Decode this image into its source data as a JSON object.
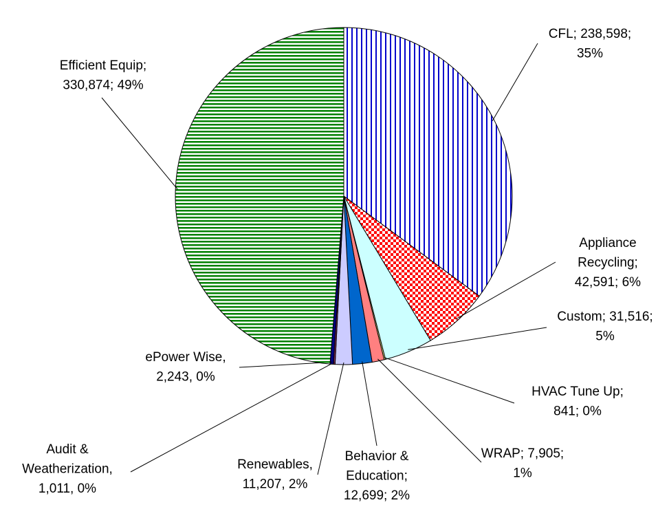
{
  "chart_data": {
    "type": "pie",
    "values": [
      238598,
      42591,
      31516,
      841,
      7905,
      12699,
      11207,
      1011,
      2243,
      330874
    ],
    "value_labels": [
      [
        "CFL; 238,598;",
        "35%"
      ],
      [
        "Appliance",
        "Recycling;",
        "42,591; 6%"
      ],
      [
        "Custom; 31,516;",
        "5%"
      ],
      [
        "HVAC Tune Up;",
        "841; 0%"
      ],
      [
        "WRAP; 7,905;",
        "1%"
      ],
      [
        "Behavior &",
        "Education;",
        "12,699; 2%"
      ],
      [
        "Renewables,",
        "11,207, 2%"
      ],
      [
        "Audit &",
        "Weatherization,",
        "1,011, 0%"
      ],
      [
        "ePower Wise,",
        "2,243, 0%"
      ],
      [
        "Efficient Equip;",
        "330,874; 49%"
      ]
    ],
    "colors": [
      "#0000cc",
      "#ff0000",
      "#ccffff",
      "#ffff99",
      "#ff8080",
      "#0066cc",
      "#ccccff",
      "#993366",
      "#000080",
      "#008000"
    ],
    "patterns": [
      "vertical-stripes",
      "checker",
      "solid",
      "solid",
      "solid",
      "solid",
      "solid",
      "solid",
      "solid",
      "horizontal-stripes"
    ]
  }
}
